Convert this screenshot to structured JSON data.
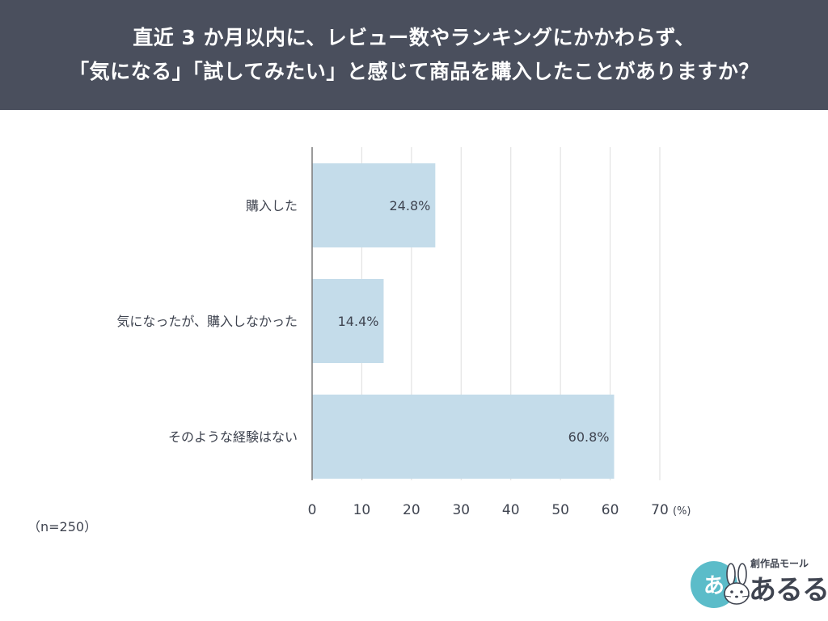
{
  "header": {
    "title_line1": "直近 3 か月以内に、レビュー数やランキングにかかわらず、",
    "title_line2": "「気になる」「試してみたい」と感じて商品を購入したことがありますか？"
  },
  "colors": {
    "header_bg": "#4a4f5d",
    "bar": "#c4dcea",
    "grid": "#e3e3e3",
    "axis": "#808080",
    "text": "#3f4450",
    "logo_accent": "#5bbcc9"
  },
  "chart_data": {
    "type": "bar",
    "orientation": "horizontal",
    "categories": [
      "購入した",
      "気になったが、購入しなかった",
      "そのような経験はない"
    ],
    "values": [
      24.8,
      14.4,
      60.8
    ],
    "data_labels": [
      "24.8%",
      "14.4%",
      "60.8%"
    ],
    "xlim": [
      0,
      70
    ],
    "x_ticks": [
      0,
      10,
      20,
      30,
      40,
      50,
      60,
      70
    ],
    "x_unit": "(%)",
    "grid": true
  },
  "footnote": {
    "sample_size": "（n=250）"
  },
  "logo": {
    "circle_text": "あ",
    "subtitle": "創作品モール",
    "name": "あるる",
    "icon": "rabbit-icon"
  }
}
